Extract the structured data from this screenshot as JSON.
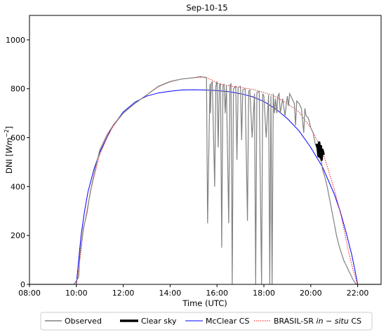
{
  "chart_data": {
    "type": "line",
    "title": "Sep-10-15",
    "xlabel": "Time (UTC)",
    "ylabel_main": "DNI [",
    "ylabel_unit": "Wm",
    "ylabel_exp": "−2",
    "ylabel_close": "]",
    "xlim": [
      8.0,
      23.0
    ],
    "ylim": [
      0,
      1100
    ],
    "x_ticks": [
      8,
      10,
      12,
      14,
      16,
      18,
      20,
      22
    ],
    "x_tick_labels": [
      "08:00",
      "10:00",
      "12:00",
      "14:00",
      "16:00",
      "18:00",
      "20:00",
      "22:00"
    ],
    "y_ticks": [
      0,
      200,
      400,
      600,
      800,
      1000
    ],
    "y_tick_labels": [
      "0",
      "200",
      "400",
      "600",
      "800",
      "1000"
    ],
    "grid": false,
    "legend_position": "bottom",
    "series": [
      {
        "name": "Observed",
        "color": "#808080",
        "style": "solid",
        "x": [
          8.0,
          9.9,
          10.1,
          10.15,
          10.3,
          10.45,
          10.6,
          10.8,
          11.0,
          11.3,
          11.6,
          12.0,
          12.5,
          13.0,
          13.5,
          14.0,
          14.5,
          15.0,
          15.3,
          15.55,
          15.6,
          15.7,
          15.72,
          15.75,
          15.8,
          15.9,
          15.95,
          16.0,
          16.05,
          16.1,
          16.15,
          16.2,
          16.25,
          16.3,
          16.35,
          16.4,
          16.5,
          16.55,
          16.6,
          16.65,
          16.7,
          16.8,
          16.85,
          16.9,
          17.0,
          17.05,
          17.1,
          17.2,
          17.3,
          17.35,
          17.4,
          17.5,
          17.6,
          17.65,
          17.7,
          17.8,
          17.9,
          17.95,
          18.0,
          18.1,
          18.2,
          18.25,
          18.3,
          18.35,
          18.4,
          18.45,
          18.5,
          18.55,
          18.6,
          18.65,
          18.7,
          18.8,
          18.9,
          19.0,
          19.05,
          19.1,
          19.2,
          19.3,
          19.35,
          19.4,
          19.5,
          19.6,
          19.7,
          19.75,
          19.8,
          19.9,
          20.0,
          20.1,
          20.2,
          20.3,
          20.4,
          20.5,
          20.6,
          20.7,
          20.8,
          20.9,
          21.0,
          21.1,
          21.2,
          21.3,
          21.4,
          21.5,
          21.6,
          21.7,
          21.8,
          21.9,
          22.0,
          23.0
        ],
        "y": [
          0,
          0,
          30,
          120,
          230,
          290,
          380,
          470,
          550,
          610,
          655,
          700,
          740,
          775,
          810,
          830,
          840,
          845,
          850,
          845,
          250,
          820,
          700,
          820,
          830,
          400,
          810,
          830,
          560,
          815,
          820,
          150,
          810,
          820,
          700,
          815,
          250,
          815,
          820,
          0,
          800,
          810,
          510,
          805,
          810,
          590,
          795,
          800,
          260,
          790,
          795,
          600,
          780,
          0,
          785,
          790,
          0,
          780,
          770,
          600,
          775,
          0,
          770,
          0,
          780,
          700,
          760,
          700,
          770,
          780,
          700,
          760,
          690,
          770,
          730,
          780,
          760,
          740,
          650,
          750,
          740,
          720,
          620,
          720,
          690,
          680,
          640,
          620,
          570,
          560,
          540,
          470,
          440,
          400,
          350,
          300,
          250,
          200,
          160,
          130,
          100,
          80,
          60,
          40,
          20,
          5,
          0,
          0
        ]
      },
      {
        "name": "Clear sky",
        "color": "#000000",
        "style": "thick",
        "x": [
          20.25,
          20.3,
          20.33,
          20.36,
          20.4,
          20.43,
          20.46,
          20.5,
          20.55
        ],
        "y": [
          575,
          555,
          525,
          580,
          520,
          565,
          510,
          550,
          530
        ]
      },
      {
        "name": "McClear CS",
        "color": "#0000ff",
        "style": "solid",
        "x": [
          10.0,
          10.1,
          10.2,
          10.35,
          10.5,
          10.75,
          11.0,
          11.5,
          12.0,
          12.5,
          13.0,
          13.5,
          14.0,
          14.5,
          15.0,
          15.5,
          16.0,
          16.5,
          17.0,
          17.5,
          18.0,
          18.5,
          19.0,
          19.5,
          20.0,
          20.5,
          21.0,
          21.25,
          21.5,
          21.75,
          21.9,
          22.0
        ],
        "y": [
          0,
          100,
          200,
          300,
          380,
          470,
          540,
          640,
          705,
          745,
          770,
          783,
          790,
          795,
          796,
          795,
          793,
          788,
          780,
          768,
          748,
          718,
          678,
          628,
          560,
          480,
          370,
          300,
          215,
          120,
          50,
          0
        ]
      },
      {
        "name": "BRASIL-SR in − situ CS",
        "color": "#ff0000",
        "style": "dotted",
        "x": [
          10.0,
          10.1,
          10.2,
          10.3,
          10.5,
          10.7,
          11.0,
          11.3,
          11.6,
          12.0,
          12.5,
          13.0,
          13.5,
          14.0,
          14.5,
          15.0,
          15.5,
          15.8,
          16.0,
          16.5,
          17.0,
          17.5,
          18.0,
          18.5,
          19.0,
          19.5,
          20.0,
          20.5,
          21.0,
          21.3,
          21.6,
          21.8,
          22.0
        ],
        "y": [
          0,
          60,
          140,
          220,
          330,
          420,
          530,
          600,
          650,
          700,
          740,
          775,
          808,
          828,
          840,
          845,
          848,
          835,
          822,
          812,
          805,
          798,
          785,
          768,
          740,
          705,
          640,
          545,
          390,
          280,
          140,
          60,
          0
        ]
      }
    ]
  }
}
